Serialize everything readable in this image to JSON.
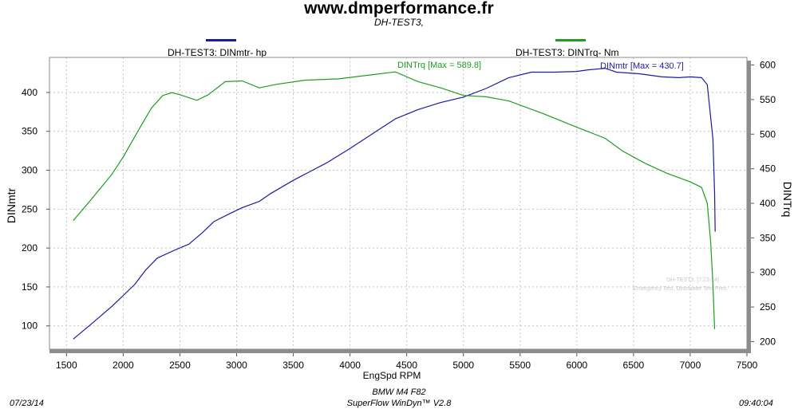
{
  "header": {
    "title": "www.dmperformance.fr",
    "subtitle": "DH-TEST3,"
  },
  "legend": [
    {
      "label": "DH-TEST3: DINmtr-  hp",
      "color": "#1a1aa8"
    },
    {
      "label": "DH-TEST3: DINTrq-  Nm",
      "color": "#1e9e1e"
    }
  ],
  "footer": {
    "date": "07/23/14",
    "vehicle": "BMW M4 F82",
    "software": "SuperFlow WinDyn™ V2.8",
    "time": "09:40:04"
  },
  "watermark": {
    "line1": "DH-TEST3, [7.23-14]",
    "line2": "Emergency Test, Distonater Test Pres"
  },
  "chart_data": {
    "type": "line",
    "title": "www.dmperformance.fr",
    "subtitle": "DH-TEST3,",
    "xlabel": "EngSpd  RPM",
    "ylabel_left": "DINmtr",
    "ylabel_right": "DINTrq",
    "xlim": [
      1350,
      7500
    ],
    "ylim_left": [
      70,
      445
    ],
    "ylim_right": [
      189,
      611
    ],
    "x_ticks": [
      1500,
      2000,
      2500,
      3000,
      3500,
      4000,
      4500,
      5000,
      5500,
      6000,
      6500,
      7000,
      7500
    ],
    "y_ticks_left": [
      100,
      150,
      200,
      250,
      300,
      350,
      400
    ],
    "y_ticks_right": [
      200,
      250,
      300,
      350,
      400,
      450,
      500,
      550,
      600
    ],
    "grid": true,
    "legend_position": "top",
    "series": [
      {
        "name": "DH-TEST3: DINmtr-  hp",
        "axis": "left",
        "color": "#1a1aa8",
        "annotation": "DINmtr [Max = 430.7]",
        "points": [
          [
            1560,
            83
          ],
          [
            1700,
            100
          ],
          [
            1900,
            125
          ],
          [
            2100,
            153
          ],
          [
            2200,
            172
          ],
          [
            2300,
            187
          ],
          [
            2450,
            197
          ],
          [
            2580,
            205
          ],
          [
            2700,
            220
          ],
          [
            2800,
            234
          ],
          [
            2950,
            245
          ],
          [
            3050,
            252
          ],
          [
            3200,
            260
          ],
          [
            3300,
            270
          ],
          [
            3500,
            287
          ],
          [
            3800,
            310
          ],
          [
            4000,
            328
          ],
          [
            4200,
            347
          ],
          [
            4400,
            366
          ],
          [
            4600,
            378
          ],
          [
            4800,
            387
          ],
          [
            5000,
            394
          ],
          [
            5200,
            405
          ],
          [
            5400,
            419
          ],
          [
            5600,
            426
          ],
          [
            5800,
            426
          ],
          [
            6000,
            427
          ],
          [
            6100,
            429
          ],
          [
            6250,
            431
          ],
          [
            6350,
            426
          ],
          [
            6550,
            424
          ],
          [
            6750,
            420
          ],
          [
            6900,
            419
          ],
          [
            7000,
            420
          ],
          [
            7100,
            419
          ],
          [
            7150,
            410
          ],
          [
            7200,
            340
          ],
          [
            7215,
            270
          ],
          [
            7220,
            221
          ]
        ]
      },
      {
        "name": "DH-TEST3: DINTrq-  Nm",
        "axis": "right",
        "color": "#1e9e1e",
        "annotation": "DINTrq [Max = 589.8]",
        "points": [
          [
            1560,
            375
          ],
          [
            1700,
            402
          ],
          [
            1900,
            442
          ],
          [
            2000,
            467
          ],
          [
            2150,
            510
          ],
          [
            2250,
            538
          ],
          [
            2350,
            556
          ],
          [
            2430,
            560
          ],
          [
            2500,
            557
          ],
          [
            2650,
            549
          ],
          [
            2750,
            557
          ],
          [
            2900,
            576
          ],
          [
            3050,
            577
          ],
          [
            3200,
            567
          ],
          [
            3350,
            572
          ],
          [
            3600,
            578
          ],
          [
            3900,
            580
          ],
          [
            4100,
            584
          ],
          [
            4400,
            590
          ],
          [
            4600,
            576
          ],
          [
            4800,
            567
          ],
          [
            5000,
            556
          ],
          [
            5200,
            554
          ],
          [
            5400,
            548
          ],
          [
            5700,
            530
          ],
          [
            6000,
            510
          ],
          [
            6250,
            494
          ],
          [
            6400,
            476
          ],
          [
            6600,
            458
          ],
          [
            6800,
            443
          ],
          [
            7000,
            431
          ],
          [
            7100,
            423
          ],
          [
            7150,
            400
          ],
          [
            7180,
            345
          ],
          [
            7200,
            283
          ],
          [
            7215,
            218
          ]
        ]
      }
    ]
  }
}
